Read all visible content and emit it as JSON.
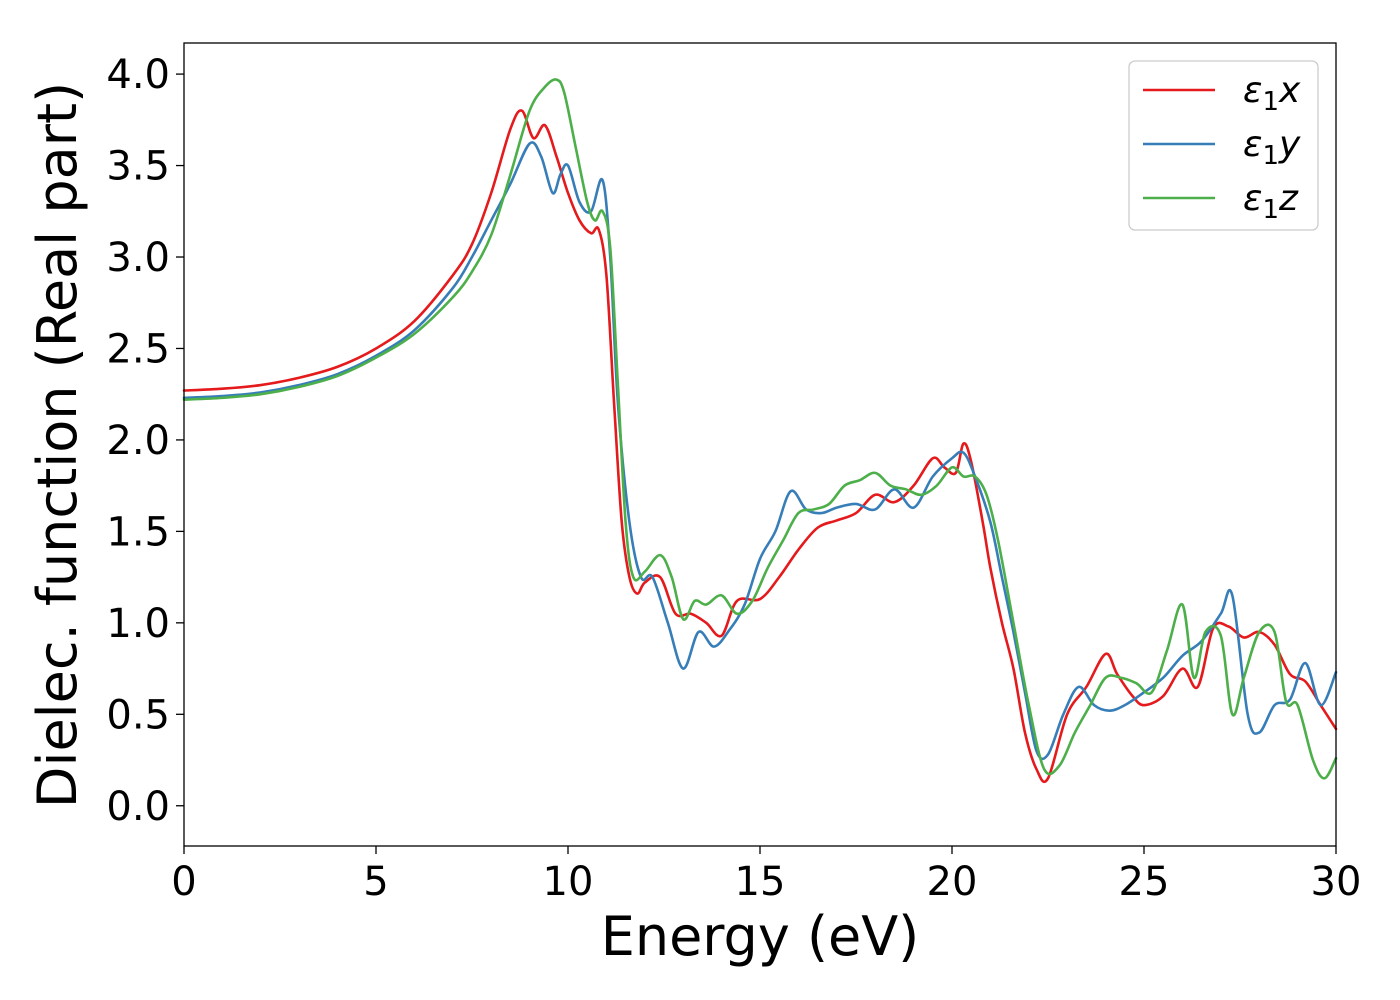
{
  "chart_data": {
    "type": "line",
    "xlabel": "Energy (eV)",
    "ylabel": "Dielec. function (Real part)",
    "xlim": [
      0,
      30
    ],
    "ylim": [
      -0.22,
      4.17
    ],
    "xticks": [
      0,
      5,
      10,
      15,
      20,
      25,
      30
    ],
    "xtick_labels": [
      "0",
      "5",
      "10",
      "15",
      "20",
      "25",
      "30"
    ],
    "yticks": [
      0.0,
      0.5,
      1.0,
      1.5,
      2.0,
      2.5,
      3.0,
      3.5,
      4.0
    ],
    "ytick_labels": [
      "0.0",
      "0.5",
      "1.0",
      "1.5",
      "2.0",
      "2.5",
      "3.0",
      "3.5",
      "4.0"
    ],
    "grid": false,
    "legend_position": "top-right",
    "series": [
      {
        "name": "ε₁x",
        "legend_base": "ε",
        "legend_sub": "1",
        "legend_var": "x",
        "color": "#e41a1c",
        "x": [
          0,
          1,
          2,
          3,
          4,
          5,
          6,
          7,
          7.5,
          8,
          8.5,
          8.8,
          9.1,
          9.4,
          9.7,
          10,
          10.3,
          10.6,
          10.8,
          11,
          11.2,
          11.4,
          11.6,
          11.8,
          12,
          12.4,
          12.8,
          13.2,
          13.6,
          14,
          14.4,
          15,
          15.5,
          16,
          16.5,
          17,
          17.5,
          18,
          18.5,
          19,
          19.5,
          19.8,
          20.1,
          20.3,
          20.5,
          20.8,
          21,
          21.3,
          21.6,
          21.9,
          22.2,
          22.5,
          23,
          23.5,
          24,
          24.3,
          24.7,
          25,
          25.5,
          26,
          26.4,
          26.8,
          27.2,
          27.6,
          28,
          28.4,
          28.8,
          29.2,
          29.6,
          30
        ],
        "y": [
          2.27,
          2.28,
          2.3,
          2.34,
          2.4,
          2.5,
          2.65,
          2.9,
          3.07,
          3.35,
          3.7,
          3.8,
          3.65,
          3.72,
          3.55,
          3.35,
          3.2,
          3.13,
          3.15,
          2.9,
          2.2,
          1.55,
          1.25,
          1.16,
          1.22,
          1.25,
          1.05,
          1.05,
          1.0,
          0.93,
          1.12,
          1.13,
          1.25,
          1.4,
          1.52,
          1.56,
          1.6,
          1.7,
          1.66,
          1.75,
          1.9,
          1.85,
          1.82,
          1.98,
          1.88,
          1.55,
          1.3,
          1.0,
          0.75,
          0.4,
          0.2,
          0.15,
          0.5,
          0.65,
          0.83,
          0.72,
          0.6,
          0.55,
          0.6,
          0.75,
          0.65,
          0.97,
          0.98,
          0.92,
          0.95,
          0.88,
          0.72,
          0.68,
          0.55,
          0.42
        ]
      },
      {
        "name": "ε₁y",
        "legend_base": "ε",
        "legend_sub": "1",
        "legend_var": "y",
        "color": "#377eb8",
        "x": [
          0,
          1,
          2,
          3,
          4,
          5,
          6,
          7,
          7.5,
          8,
          8.5,
          9,
          9.3,
          9.6,
          9.8,
          10,
          10.3,
          10.6,
          10.9,
          11.1,
          11.3,
          11.6,
          11.9,
          12.2,
          12.6,
          13,
          13.4,
          13.8,
          14.2,
          14.6,
          15,
          15.4,
          15.8,
          16.2,
          16.6,
          17,
          17.5,
          18,
          18.5,
          19,
          19.5,
          20,
          20.3,
          20.6,
          21,
          21.3,
          21.6,
          21.9,
          22.2,
          22.5,
          22.9,
          23.3,
          23.7,
          24.1,
          24.5,
          25,
          25.5,
          26,
          26.5,
          27,
          27.3,
          27.7,
          28,
          28.4,
          28.8,
          29.2,
          29.6,
          30
        ],
        "y": [
          2.23,
          2.24,
          2.26,
          2.3,
          2.36,
          2.46,
          2.6,
          2.83,
          3.0,
          3.2,
          3.4,
          3.62,
          3.55,
          3.35,
          3.45,
          3.5,
          3.3,
          3.25,
          3.42,
          3.0,
          2.2,
          1.55,
          1.25,
          1.25,
          1.0,
          0.75,
          0.95,
          0.87,
          0.96,
          1.1,
          1.35,
          1.5,
          1.72,
          1.62,
          1.6,
          1.63,
          1.65,
          1.62,
          1.73,
          1.63,
          1.8,
          1.9,
          1.93,
          1.8,
          1.55,
          1.25,
          0.95,
          0.62,
          0.3,
          0.28,
          0.5,
          0.65,
          0.55,
          0.52,
          0.55,
          0.62,
          0.7,
          0.82,
          0.9,
          1.05,
          1.15,
          0.5,
          0.4,
          0.55,
          0.58,
          0.78,
          0.55,
          0.73
        ]
      },
      {
        "name": "ε₁z",
        "legend_base": "ε",
        "legend_sub": "1",
        "legend_var": "z",
        "color": "#4daf4a",
        "x": [
          0,
          1,
          2,
          3,
          4,
          5,
          6,
          7,
          7.5,
          8,
          8.5,
          9,
          9.4,
          9.7,
          9.9,
          10.2,
          10.5,
          10.7,
          10.9,
          11.1,
          11.3,
          11.5,
          11.7,
          12,
          12.4,
          12.7,
          13,
          13.3,
          13.6,
          14,
          14.4,
          14.8,
          15.2,
          15.6,
          16,
          16.4,
          16.8,
          17.2,
          17.6,
          18,
          18.4,
          18.8,
          19.2,
          19.6,
          20,
          20.3,
          20.6,
          20.9,
          21.2,
          21.6,
          22,
          22.4,
          22.8,
          23.2,
          23.6,
          24,
          24.4,
          24.8,
          25.2,
          25.6,
          26,
          26.3,
          26.6,
          27,
          27.3,
          27.6,
          28,
          28.4,
          28.7,
          29,
          29.4,
          29.7,
          30
        ],
        "y": [
          2.22,
          2.23,
          2.25,
          2.29,
          2.35,
          2.45,
          2.58,
          2.78,
          2.92,
          3.12,
          3.45,
          3.8,
          3.93,
          3.97,
          3.9,
          3.6,
          3.3,
          3.2,
          3.25,
          3.05,
          2.3,
          1.55,
          1.25,
          1.28,
          1.37,
          1.25,
          1.02,
          1.12,
          1.1,
          1.15,
          1.05,
          1.12,
          1.3,
          1.45,
          1.6,
          1.62,
          1.65,
          1.75,
          1.78,
          1.82,
          1.75,
          1.73,
          1.7,
          1.75,
          1.85,
          1.8,
          1.8,
          1.7,
          1.45,
          1.0,
          0.55,
          0.2,
          0.22,
          0.4,
          0.55,
          0.7,
          0.7,
          0.67,
          0.62,
          0.85,
          1.1,
          0.7,
          0.95,
          0.93,
          0.5,
          0.7,
          0.95,
          0.95,
          0.57,
          0.55,
          0.25,
          0.15,
          0.26
        ]
      }
    ]
  }
}
